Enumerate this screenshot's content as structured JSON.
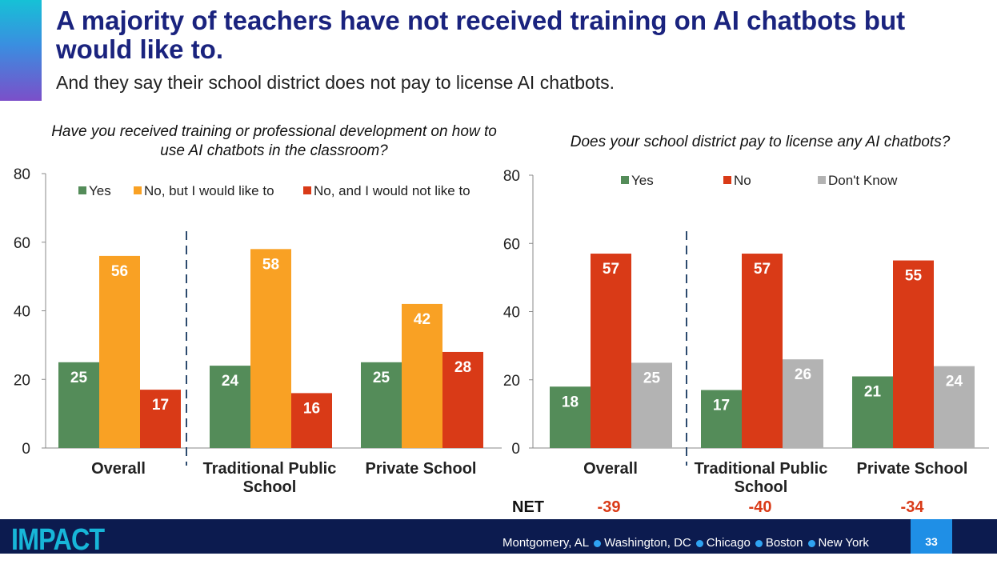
{
  "header": {
    "title": "A majority of teachers have not received training on AI chatbots but would like to.",
    "subtitle": "And they say their school district does not pay to license AI chatbots."
  },
  "colors": {
    "accent_gradient": [
      "#16c1d6",
      "#3a8ee0",
      "#7b4fc9"
    ],
    "title": "#1a237e",
    "green": "#548c59",
    "orange": "#f9a124",
    "red": "#d93a17",
    "gray": "#b3b3b3",
    "footer_bg": "#0c1b4f",
    "city_dot": "#2fa3f2",
    "page_box": "#1f8fe6"
  },
  "chart_data": [
    {
      "type": "bar",
      "title": "Have you received training or professional development on how to use AI chatbots in the classroom?",
      "categories": [
        "Overall",
        "Traditional Public School",
        "Private School"
      ],
      "series": [
        {
          "name": "Yes",
          "color": "#548c59",
          "values": [
            25,
            24,
            25
          ]
        },
        {
          "name": "No, but I would like to",
          "color": "#f9a124",
          "values": [
            56,
            58,
            42
          ]
        },
        {
          "name": "No, and I would not like to",
          "color": "#d93a17",
          "values": [
            17,
            16,
            28
          ]
        }
      ],
      "ylim": [
        0,
        80
      ],
      "yticks": [
        0,
        20,
        40,
        60,
        80
      ],
      "legend": "top",
      "grid": false
    },
    {
      "type": "bar",
      "title": "Does your school district pay to license any AI chatbots?",
      "categories": [
        "Overall",
        "Traditional Public School",
        "Private School"
      ],
      "series": [
        {
          "name": "Yes",
          "color": "#548c59",
          "values": [
            18,
            17,
            21
          ]
        },
        {
          "name": "No",
          "color": "#d93a17",
          "values": [
            57,
            57,
            55
          ]
        },
        {
          "name": "Don't Know",
          "color": "#b3b3b3",
          "values": [
            25,
            26,
            24
          ]
        }
      ],
      "ylim": [
        0,
        80
      ],
      "yticks": [
        0,
        20,
        40,
        60,
        80
      ],
      "legend": "top",
      "grid": false,
      "net_label": "NET",
      "net_values": [
        "-39",
        "-40",
        "-34"
      ]
    }
  ],
  "footer": {
    "logo": "IMPACT",
    "cities": [
      "Montgomery, AL",
      "Washington, DC",
      "Chicago",
      "Boston",
      "New York"
    ],
    "page_number": "33"
  }
}
